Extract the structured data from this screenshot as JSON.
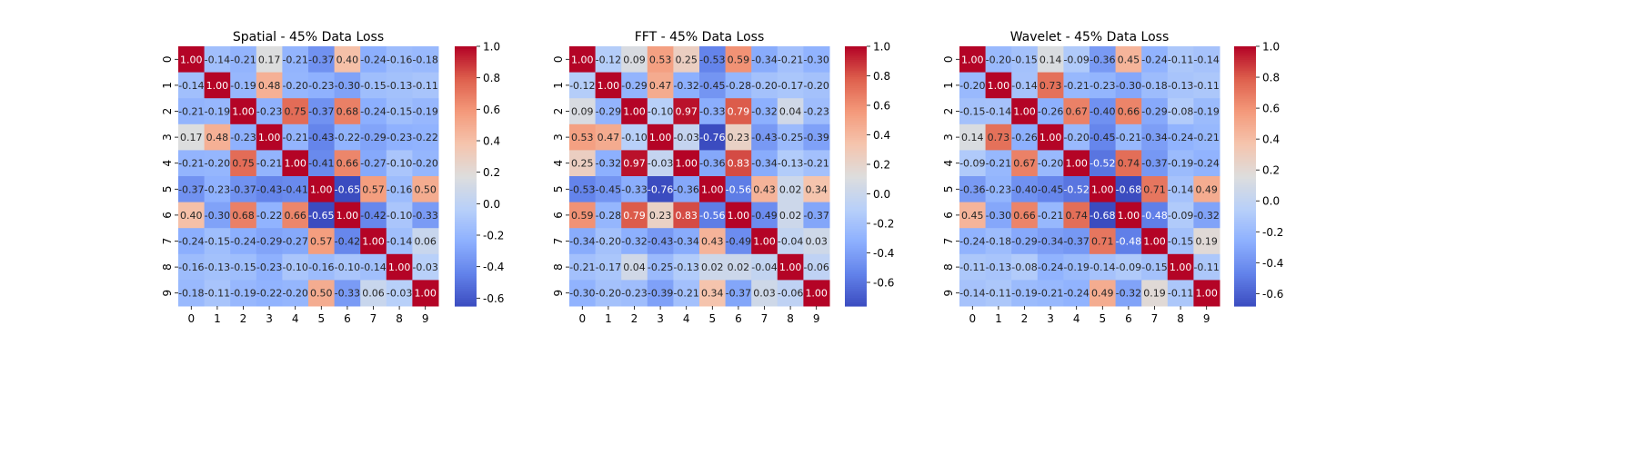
{
  "chart_data": [
    {
      "type": "heatmap",
      "title": "Spatial - 45% Data Loss",
      "x_categories": [
        "0",
        "1",
        "2",
        "3",
        "4",
        "5",
        "6",
        "7",
        "8",
        "9"
      ],
      "y_categories": [
        "0",
        "1",
        "2",
        "3",
        "4",
        "5",
        "6",
        "7",
        "8",
        "9"
      ],
      "colormap": "coolwarm",
      "vmin": -0.65,
      "vmax": 1.0,
      "colorbar_ticks": [
        "-0.6",
        "-0.4",
        "-0.2",
        "0.0",
        "0.2",
        "0.4",
        "0.6",
        "0.8",
        "1.0"
      ],
      "colorbar_values": [
        -0.6,
        -0.4,
        -0.2,
        0.0,
        0.2,
        0.4,
        0.6,
        0.8,
        1.0
      ],
      "values": [
        [
          1.0,
          -0.14,
          -0.21,
          0.17,
          -0.21,
          -0.37,
          0.4,
          -0.24,
          -0.16,
          -0.18
        ],
        [
          -0.14,
          1.0,
          -0.19,
          0.48,
          -0.2,
          -0.23,
          -0.3,
          -0.15,
          -0.13,
          -0.11
        ],
        [
          -0.21,
          -0.19,
          1.0,
          -0.23,
          0.75,
          -0.37,
          0.68,
          -0.24,
          -0.15,
          -0.19
        ],
        [
          0.17,
          0.48,
          -0.23,
          1.0,
          -0.21,
          -0.43,
          -0.22,
          -0.29,
          -0.23,
          -0.22
        ],
        [
          -0.21,
          -0.2,
          0.75,
          -0.21,
          1.0,
          -0.41,
          0.66,
          -0.27,
          -0.1,
          -0.2
        ],
        [
          -0.37,
          -0.23,
          -0.37,
          -0.43,
          -0.41,
          1.0,
          -0.65,
          0.57,
          -0.16,
          0.5
        ],
        [
          0.4,
          -0.3,
          0.68,
          -0.22,
          0.66,
          -0.65,
          1.0,
          -0.42,
          -0.1,
          -0.33
        ],
        [
          -0.24,
          -0.15,
          -0.24,
          -0.29,
          -0.27,
          0.57,
          -0.42,
          1.0,
          -0.14,
          0.06
        ],
        [
          -0.16,
          -0.13,
          -0.15,
          -0.23,
          -0.1,
          -0.16,
          -0.1,
          -0.14,
          1.0,
          -0.03
        ],
        [
          -0.18,
          -0.11,
          -0.19,
          -0.22,
          -0.2,
          0.5,
          -0.33,
          0.06,
          -0.03,
          1.0
        ]
      ]
    },
    {
      "type": "heatmap",
      "title": "FFT - 45% Data Loss",
      "x_categories": [
        "0",
        "1",
        "2",
        "3",
        "4",
        "5",
        "6",
        "7",
        "8",
        "9"
      ],
      "y_categories": [
        "0",
        "1",
        "2",
        "3",
        "4",
        "5",
        "6",
        "7",
        "8",
        "9"
      ],
      "colormap": "coolwarm",
      "vmin": -0.76,
      "vmax": 1.0,
      "colorbar_ticks": [
        "-0.6",
        "-0.4",
        "-0.2",
        "0.0",
        "0.2",
        "0.4",
        "0.6",
        "0.8",
        "1.0"
      ],
      "colorbar_values": [
        -0.6,
        -0.4,
        -0.2,
        0.0,
        0.2,
        0.4,
        0.6,
        0.8,
        1.0
      ],
      "values": [
        [
          1.0,
          -0.12,
          0.09,
          0.53,
          0.25,
          -0.53,
          0.59,
          -0.34,
          -0.21,
          -0.3
        ],
        [
          -0.12,
          1.0,
          -0.29,
          0.47,
          -0.32,
          -0.45,
          -0.28,
          -0.2,
          -0.17,
          -0.2
        ],
        [
          0.09,
          -0.29,
          1.0,
          -0.1,
          0.97,
          -0.33,
          0.79,
          -0.32,
          0.04,
          -0.23
        ],
        [
          0.53,
          0.47,
          -0.1,
          1.0,
          -0.03,
          -0.76,
          0.23,
          -0.43,
          -0.25,
          -0.39
        ],
        [
          0.25,
          -0.32,
          0.97,
          -0.03,
          1.0,
          -0.36,
          0.83,
          -0.34,
          -0.13,
          -0.21
        ],
        [
          -0.53,
          -0.45,
          -0.33,
          -0.76,
          -0.36,
          1.0,
          -0.56,
          0.43,
          0.02,
          0.34
        ],
        [
          0.59,
          -0.28,
          0.79,
          0.23,
          0.83,
          -0.56,
          1.0,
          -0.49,
          0.02,
          -0.37
        ],
        [
          -0.34,
          -0.2,
          -0.32,
          -0.43,
          -0.34,
          0.43,
          -0.49,
          1.0,
          -0.04,
          0.03
        ],
        [
          -0.21,
          -0.17,
          0.04,
          -0.25,
          -0.13,
          0.02,
          0.02,
          -0.04,
          1.0,
          -0.06
        ],
        [
          -0.3,
          -0.2,
          -0.23,
          -0.39,
          -0.21,
          0.34,
          -0.37,
          0.03,
          -0.06,
          1.0
        ]
      ]
    },
    {
      "type": "heatmap",
      "title": "Wavelet - 45% Data Loss",
      "x_categories": [
        "0",
        "1",
        "2",
        "3",
        "4",
        "5",
        "6",
        "7",
        "8",
        "9"
      ],
      "y_categories": [
        "0",
        "1",
        "2",
        "3",
        "4",
        "5",
        "6",
        "7",
        "8",
        "9"
      ],
      "colormap": "coolwarm",
      "vmin": -0.68,
      "vmax": 1.0,
      "colorbar_ticks": [
        "-0.6",
        "-0.4",
        "-0.2",
        "0.0",
        "0.2",
        "0.4",
        "0.6",
        "0.8",
        "1.0"
      ],
      "colorbar_values": [
        -0.6,
        -0.4,
        -0.2,
        0.0,
        0.2,
        0.4,
        0.6,
        0.8,
        1.0
      ],
      "values": [
        [
          1.0,
          -0.2,
          -0.15,
          0.14,
          -0.09,
          -0.36,
          0.45,
          -0.24,
          -0.11,
          -0.14
        ],
        [
          -0.2,
          1.0,
          -0.14,
          0.73,
          -0.21,
          -0.23,
          -0.3,
          -0.18,
          -0.13,
          -0.11
        ],
        [
          -0.15,
          -0.14,
          1.0,
          -0.26,
          0.67,
          -0.4,
          0.66,
          -0.29,
          -0.08,
          -0.19
        ],
        [
          0.14,
          0.73,
          -0.26,
          1.0,
          -0.2,
          -0.45,
          -0.21,
          -0.34,
          -0.24,
          -0.21
        ],
        [
          -0.09,
          -0.21,
          0.67,
          -0.2,
          1.0,
          -0.52,
          0.74,
          -0.37,
          -0.19,
          -0.24
        ],
        [
          -0.36,
          -0.23,
          -0.4,
          -0.45,
          -0.52,
          1.0,
          -0.68,
          0.71,
          -0.14,
          0.49
        ],
        [
          0.45,
          -0.3,
          0.66,
          -0.21,
          0.74,
          -0.68,
          1.0,
          -0.48,
          -0.09,
          -0.32
        ],
        [
          -0.24,
          -0.18,
          -0.29,
          -0.34,
          -0.37,
          0.71,
          -0.48,
          1.0,
          -0.15,
          0.19
        ],
        [
          -0.11,
          -0.13,
          -0.08,
          -0.24,
          -0.19,
          -0.14,
          -0.09,
          -0.15,
          1.0,
          -0.11
        ],
        [
          -0.14,
          -0.11,
          -0.19,
          -0.21,
          -0.24,
          0.49,
          -0.32,
          0.19,
          -0.11,
          1.0
        ]
      ]
    }
  ]
}
